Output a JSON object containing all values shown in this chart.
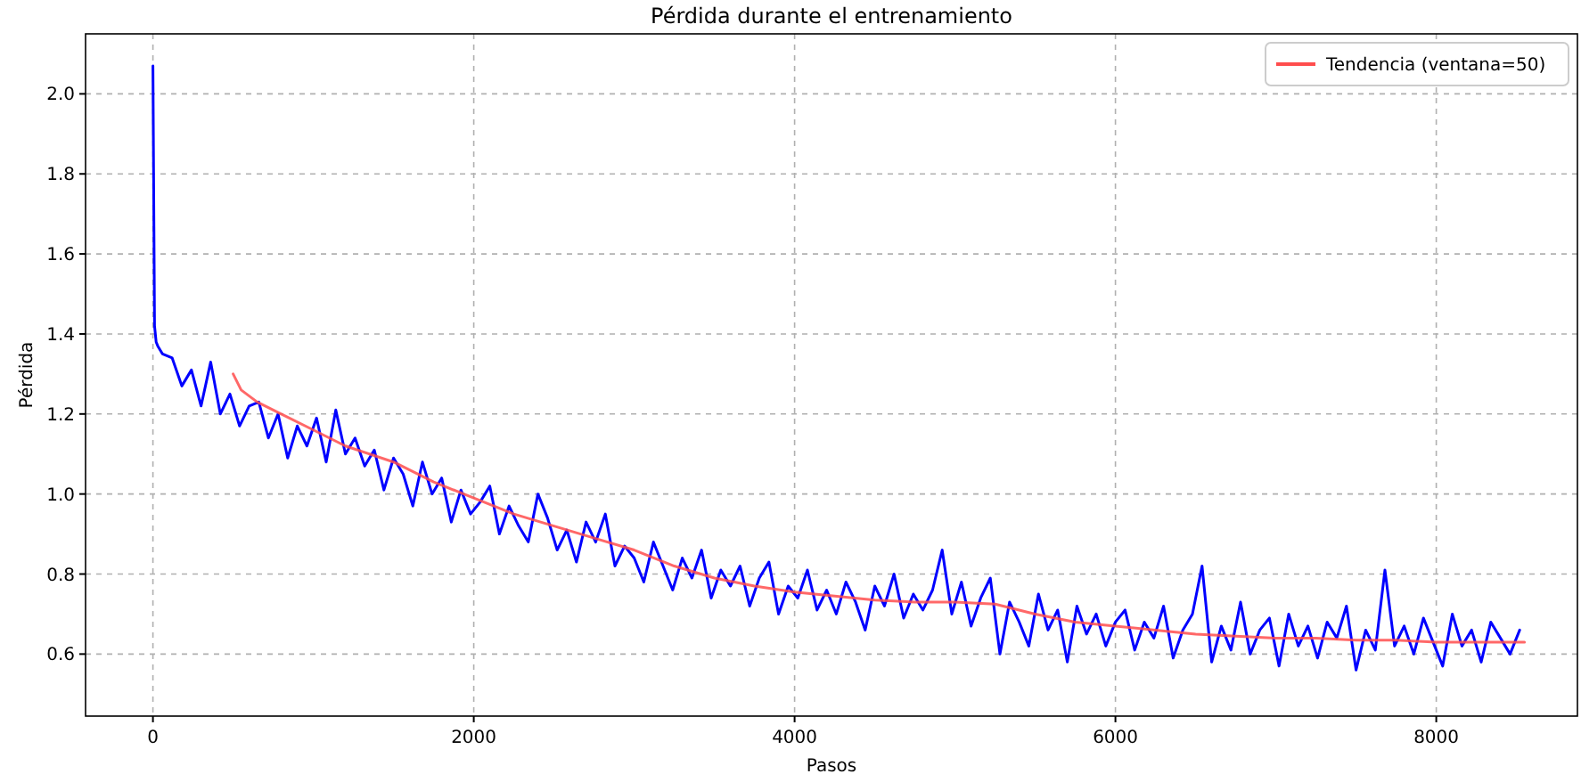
{
  "chart_data": {
    "type": "line",
    "title": "Pérdida durante el entrenamiento",
    "xlabel": "Pasos",
    "ylabel": "Pérdida",
    "xlim": [
      -420,
      8880
    ],
    "xticks": [
      0,
      2000,
      4000,
      6000,
      8000
    ],
    "ylim": [
      0.445,
      2.15
    ],
    "yticks": [
      0.6,
      0.8,
      {
        "value": 1,
        "label": "1.0"
      },
      1.2,
      1.4,
      1.6,
      1.8,
      {
        "value": 2,
        "label": "2.0"
      }
    ],
    "grid": true,
    "legend": "top right",
    "line_style": "solid",
    "marker": "none",
    "series": [
      {
        "color": "#0000ff",
        "x": [
          0,
          10,
          20,
          30,
          60,
          120,
          180,
          240,
          300,
          360,
          420,
          480,
          540,
          600,
          660,
          720,
          780,
          840,
          900,
          960,
          1020,
          1080,
          1140,
          1200,
          1260,
          1320,
          1380,
          1440,
          1500,
          1560,
          1620,
          1680,
          1740,
          1800,
          1860,
          1920,
          1980,
          2040,
          2100,
          2160,
          2220,
          2280,
          2340,
          2400,
          2460,
          2520,
          2580,
          2640,
          2700,
          2760,
          2820,
          2880,
          2940,
          3000,
          3060,
          3120,
          3180,
          3240,
          3300,
          3360,
          3420,
          3480,
          3540,
          3600,
          3660,
          3720,
          3780,
          3840,
          3900,
          3960,
          4020,
          4080,
          4140,
          4200,
          4260,
          4320,
          4380,
          4440,
          4500,
          4560,
          4620,
          4680,
          4740,
          4800,
          4860,
          4920,
          4980,
          5040,
          5100,
          5160,
          5220,
          5280,
          5340,
          5400,
          5460,
          5520,
          5580,
          5640,
          5700,
          5760,
          5820,
          5880,
          5940,
          6000,
          6060,
          6120,
          6180,
          6240,
          6300,
          6360,
          6420,
          6480,
          6540,
          6600,
          6660,
          6720,
          6780,
          6840,
          6900,
          6960,
          7020,
          7080,
          7140,
          7200,
          7260,
          7320,
          7380,
          7440,
          7500,
          7560,
          7620,
          7680,
          7740,
          7800,
          7860,
          7920,
          7980,
          8040,
          8100,
          8160,
          8220,
          8280,
          8340,
          8400,
          8460,
          8520
        ],
        "values": [
          2.07,
          1.42,
          1.38,
          1.37,
          1.35,
          1.34,
          1.27,
          1.31,
          1.22,
          1.33,
          1.2,
          1.25,
          1.17,
          1.22,
          1.23,
          1.14,
          1.2,
          1.09,
          1.17,
          1.12,
          1.19,
          1.08,
          1.21,
          1.1,
          1.14,
          1.07,
          1.11,
          1.01,
          1.09,
          1.05,
          0.97,
          1.08,
          1.0,
          1.04,
          0.93,
          1.01,
          0.95,
          0.98,
          1.02,
          0.9,
          0.97,
          0.92,
          0.88,
          1.0,
          0.94,
          0.86,
          0.91,
          0.83,
          0.93,
          0.88,
          0.95,
          0.82,
          0.87,
          0.84,
          0.78,
          0.88,
          0.82,
          0.76,
          0.84,
          0.79,
          0.86,
          0.74,
          0.81,
          0.77,
          0.82,
          0.72,
          0.79,
          0.83,
          0.7,
          0.77,
          0.74,
          0.81,
          0.71,
          0.76,
          0.7,
          0.78,
          0.73,
          0.66,
          0.77,
          0.72,
          0.8,
          0.69,
          0.75,
          0.71,
          0.76,
          0.86,
          0.7,
          0.78,
          0.67,
          0.74,
          0.79,
          0.6,
          0.73,
          0.68,
          0.62,
          0.75,
          0.66,
          0.71,
          0.58,
          0.72,
          0.65,
          0.7,
          0.62,
          0.68,
          0.71,
          0.61,
          0.68,
          0.64,
          0.72,
          0.59,
          0.66,
          0.7,
          0.82,
          0.58,
          0.67,
          0.61,
          0.73,
          0.6,
          0.66,
          0.69,
          0.57,
          0.7,
          0.62,
          0.67,
          0.59,
          0.68,
          0.64,
          0.72,
          0.56,
          0.66,
          0.61,
          0.81,
          0.62,
          0.67,
          0.6,
          0.69,
          0.63,
          0.57,
          0.7,
          0.62,
          0.66,
          0.58,
          0.68,
          0.64,
          0.6,
          0.66
        ]
      },
      {
        "name": "Tendencia (ventana=50)",
        "color": "#ff4d4d",
        "x": [
          500,
          550,
          650,
          800,
          1000,
          1200,
          1500,
          1750,
          2000,
          2250,
          2500,
          2750,
          3000,
          3250,
          3500,
          3750,
          4000,
          4250,
          4500,
          4750,
          5000,
          5250,
          5500,
          5750,
          6000,
          6250,
          6500,
          6750,
          7000,
          7250,
          7500,
          7750,
          8000,
          8250,
          8550
        ],
        "values": [
          1.3,
          1.26,
          1.23,
          1.2,
          1.16,
          1.12,
          1.08,
          1.03,
          0.99,
          0.95,
          0.92,
          0.89,
          0.86,
          0.82,
          0.79,
          0.77,
          0.755,
          0.745,
          0.735,
          0.73,
          0.73,
          0.725,
          0.7,
          0.68,
          0.67,
          0.66,
          0.65,
          0.645,
          0.64,
          0.64,
          0.635,
          0.635,
          0.63,
          0.63,
          0.63
        ]
      }
    ]
  }
}
